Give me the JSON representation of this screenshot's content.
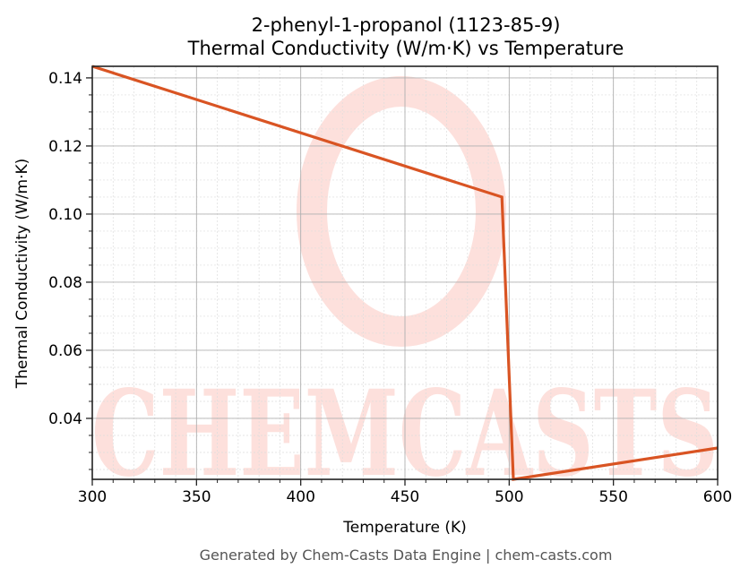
{
  "chart_data": {
    "type": "line",
    "title": "2-phenyl-1-propanol (1123-85-9)",
    "subtitle": "Thermal Conductivity (W/m·K) vs Temperature",
    "xlabel": "Temperature (K)",
    "ylabel": "Thermal Conductivity (W/m·K)",
    "xlim": [
      300,
      600
    ],
    "ylim": [
      0.0221,
      0.1434
    ],
    "x_ticks": [
      300,
      350,
      400,
      450,
      500,
      550,
      600
    ],
    "x_tick_labels": [
      "300",
      "350",
      "400",
      "450",
      "500",
      "550",
      "600"
    ],
    "y_ticks": [
      0.04,
      0.06,
      0.08,
      0.1,
      0.12,
      0.14
    ],
    "y_tick_labels": [
      "0.04",
      "0.06",
      "0.08",
      "0.10",
      "0.12",
      "0.14"
    ],
    "grid": true,
    "legend": null,
    "series": [
      {
        "name": "Thermal Conductivity",
        "color": "#d95423",
        "x": [
          300,
          496.5,
          502,
          600
        ],
        "y": [
          0.1434,
          0.105,
          0.0221,
          0.0313
        ]
      }
    ]
  },
  "watermark": {
    "text": "CHEMCASTS",
    "color": "#fde0dc"
  },
  "footer": {
    "text": "Generated by Chem-Casts Data Engine | chem-casts.com"
  }
}
